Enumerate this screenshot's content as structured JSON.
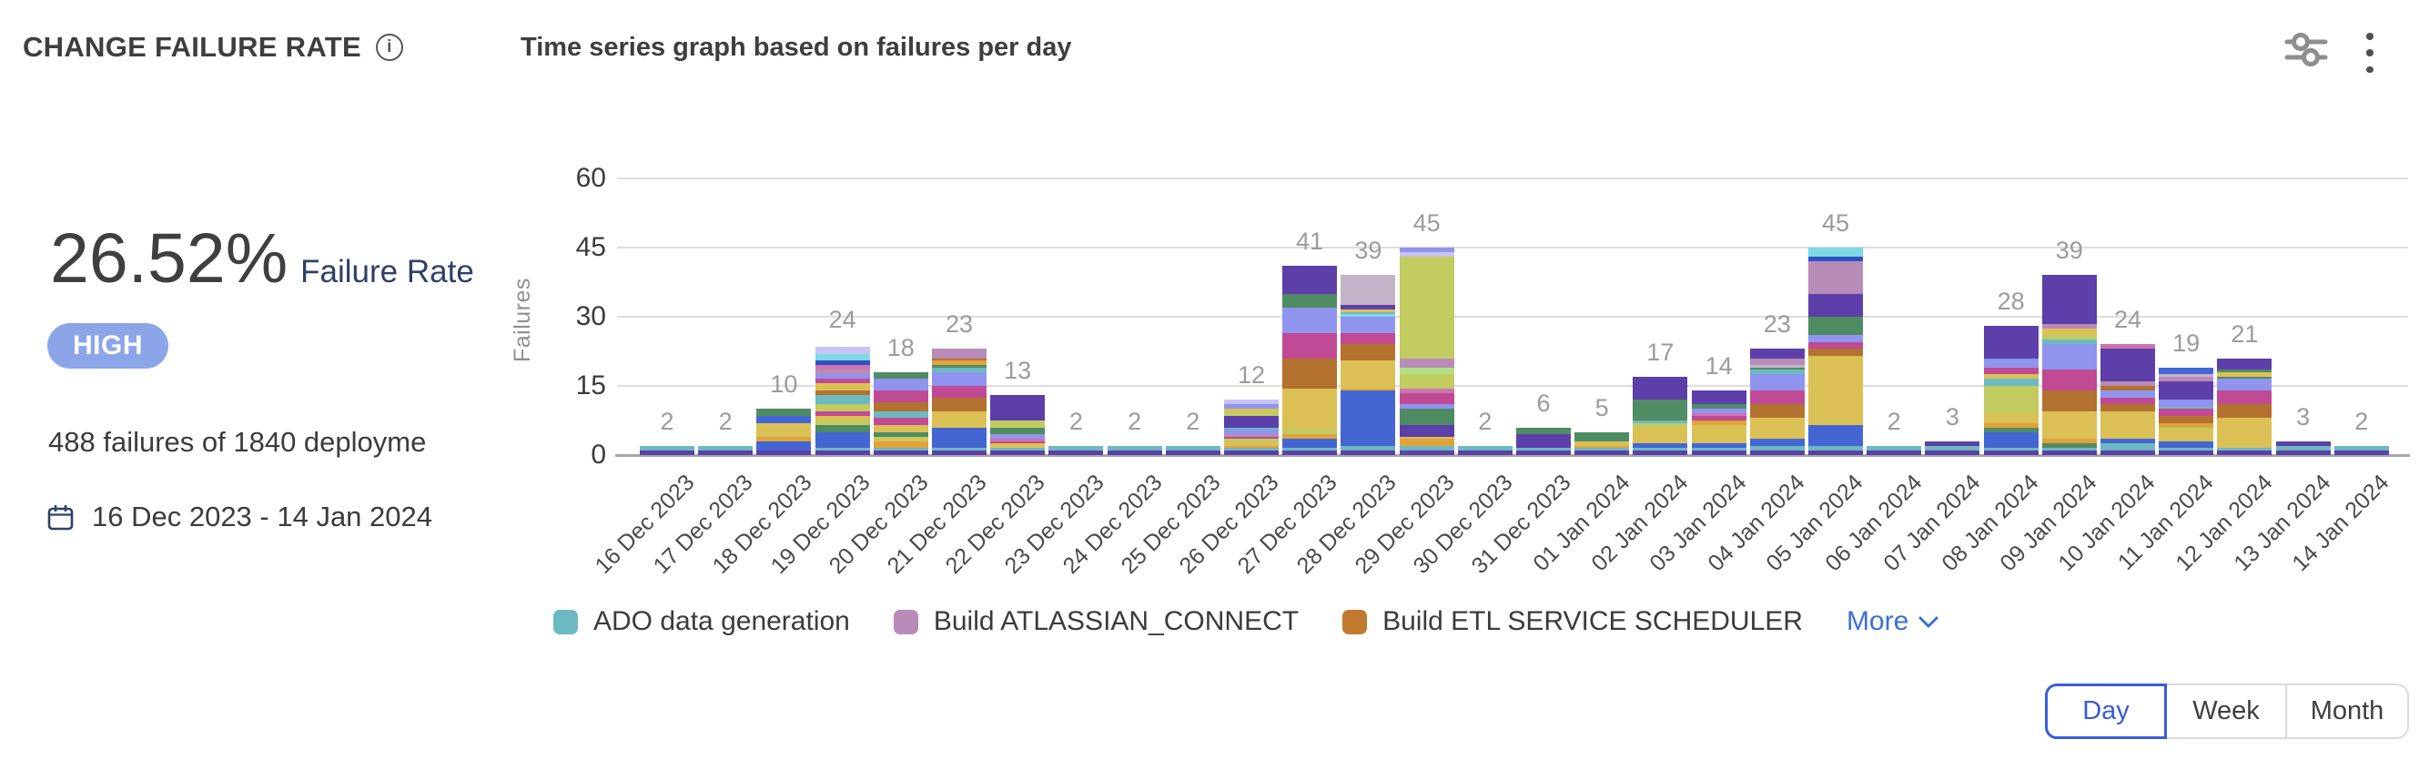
{
  "header": {
    "title": "CHANGE FAILURE RATE",
    "info_glyph": "i",
    "chart_title": "Time series graph based on failures per day"
  },
  "stats": {
    "rate_value": "26.52%",
    "rate_label": "Failure Rate",
    "severity": "HIGH",
    "severity_badge_bg": "#8CA5E9",
    "summary": "488 failures of 1840 deployme",
    "date_range": "16 Dec 2023 - 14 Jan 2024"
  },
  "legend": {
    "items": [
      {
        "label": "ADO data generation",
        "color": "#6CB9C1"
      },
      {
        "label": "Build ATLASSIAN_CONNECT",
        "color": "#B88BB9"
      },
      {
        "label": "Build ETL SERVICE SCHEDULER",
        "color": "#BF7A30"
      }
    ],
    "more_label": "More"
  },
  "controls": {
    "granularity": [
      {
        "label": "Day",
        "selected": true
      },
      {
        "label": "Week",
        "selected": false
      },
      {
        "label": "Month",
        "selected": false
      }
    ]
  },
  "colors": {
    "accent_blue": "#3C5BD7",
    "link_blue": "#3A6FD8",
    "grid": "#DDDDDD",
    "value_label": "#9B9B9B"
  },
  "chart_data": {
    "type": "bar",
    "stacked": true,
    "title": "Time series graph based on failures per day",
    "ylabel": "Failures",
    "yticks": [
      0,
      15,
      30,
      45,
      60
    ],
    "ylim": [
      0,
      60
    ],
    "legend_position": "bottom",
    "grid": true,
    "palette": {
      "P": "#5D3FA9",
      "T": "#6CB9C1",
      "C": "#7FD8E5",
      "B": "#4466D3",
      "DB": "#2E52C4",
      "A": "#E0A33C",
      "Y": "#DBC155",
      "O": "#C2CB60",
      "LG": "#B0DF85",
      "G": "#4F8B63",
      "M": "#C04A94",
      "Pk": "#CD74B0",
      "Br": "#B3722F",
      "Pw": "#9094EF",
      "Lv": "#C7C3F2",
      "Mv": "#B88BB9",
      "GM": "#C3B4C7"
    },
    "categories": [
      "16 Dec 2023",
      "17 Dec 2023",
      "18 Dec 2023",
      "19 Dec 2023",
      "20 Dec 2023",
      "21 Dec 2023",
      "22 Dec 2023",
      "23 Dec 2023",
      "24 Dec 2023",
      "25 Dec 2023",
      "26 Dec 2023",
      "27 Dec 2023",
      "28 Dec 2023",
      "29 Dec 2023",
      "30 Dec 2023",
      "31 Dec 2023",
      "01 Jan 2024",
      "02 Jan 2024",
      "03 Jan 2024",
      "04 Jan 2024",
      "05 Jan 2024",
      "06 Jan 2024",
      "07 Jan 2024",
      "08 Jan 2024",
      "09 Jan 2024",
      "10 Jan 2024",
      "11 Jan 2024",
      "12 Jan 2024",
      "13 Jan 2024",
      "14 Jan 2024"
    ],
    "totals": [
      2,
      2,
      10,
      24,
      18,
      23,
      13,
      2,
      2,
      2,
      12,
      41,
      39,
      45,
      2,
      6,
      5,
      17,
      14,
      23,
      45,
      2,
      3,
      28,
      39,
      24,
      19,
      21,
      3,
      2
    ],
    "bars": [
      {
        "date": "16 Dec 2023",
        "total": 2,
        "segments": [
          [
            "P",
            1
          ],
          [
            "T",
            1
          ]
        ]
      },
      {
        "date": "17 Dec 2023",
        "total": 2,
        "segments": [
          [
            "P",
            1
          ],
          [
            "T",
            1
          ]
        ]
      },
      {
        "date": "18 Dec 2023",
        "total": 10,
        "segments": [
          [
            "P",
            1
          ],
          [
            "B",
            2
          ],
          [
            "A",
            1
          ],
          [
            "Y",
            3
          ],
          [
            "B",
            1.5
          ],
          [
            "G",
            1.5
          ]
        ]
      },
      {
        "date": "19 Dec 2023",
        "total": 24,
        "segments": [
          [
            "P",
            1
          ],
          [
            "T",
            0.5
          ],
          [
            "B",
            3.5
          ],
          [
            "G",
            1.5
          ],
          [
            "O",
            1
          ],
          [
            "Y",
            1
          ],
          [
            "M",
            1
          ],
          [
            "O",
            1.5
          ],
          [
            "T",
            2
          ],
          [
            "Br",
            1
          ],
          [
            "Y",
            1.5
          ],
          [
            "M",
            1
          ],
          [
            "Pw",
            1
          ],
          [
            "Mv",
            1
          ],
          [
            "Pk",
            1
          ],
          [
            "DB",
            1
          ],
          [
            "C",
            1.5
          ],
          [
            "Lv",
            1.5
          ]
        ]
      },
      {
        "date": "20 Dec 2023",
        "total": 18,
        "segments": [
          [
            "P",
            1
          ],
          [
            "T",
            0.5
          ],
          [
            "A",
            1.5
          ],
          [
            "Y",
            0.5
          ],
          [
            "O",
            0.5
          ],
          [
            "G",
            1
          ],
          [
            "Y",
            1.5
          ],
          [
            "M",
            1.5
          ],
          [
            "T",
            1.5
          ],
          [
            "Br",
            2
          ],
          [
            "M",
            2.5
          ],
          [
            "Pw",
            2.5
          ],
          [
            "G",
            1.5
          ]
        ]
      },
      {
        "date": "21 Dec 2023",
        "total": 23,
        "segments": [
          [
            "P",
            1
          ],
          [
            "T",
            0.5
          ],
          [
            "B",
            4.5
          ],
          [
            "Y",
            3.5
          ],
          [
            "Br",
            3
          ],
          [
            "M",
            2.5
          ],
          [
            "Pw",
            3
          ],
          [
            "T",
            1
          ],
          [
            "G",
            0.5
          ],
          [
            "A",
            1
          ],
          [
            "Br",
            0.5
          ],
          [
            "Mv",
            2
          ]
        ]
      },
      {
        "date": "22 Dec 2023",
        "total": 13,
        "segments": [
          [
            "P",
            1
          ],
          [
            "T",
            0.5
          ],
          [
            "Y",
            1
          ],
          [
            "M",
            0.5
          ],
          [
            "Pk",
            0.5
          ],
          [
            "Pw",
            1
          ],
          [
            "G",
            1.5
          ],
          [
            "O",
            1.5
          ],
          [
            "P",
            5.5
          ]
        ]
      },
      {
        "date": "23 Dec 2023",
        "total": 2,
        "segments": [
          [
            "P",
            1
          ],
          [
            "T",
            1
          ]
        ]
      },
      {
        "date": "24 Dec 2023",
        "total": 2,
        "segments": [
          [
            "P",
            1
          ],
          [
            "T",
            1
          ]
        ]
      },
      {
        "date": "25 Dec 2023",
        "total": 2,
        "segments": [
          [
            "P",
            1
          ],
          [
            "T",
            1
          ]
        ]
      },
      {
        "date": "26 Dec 2023",
        "total": 12,
        "segments": [
          [
            "P",
            1
          ],
          [
            "T",
            0.5
          ],
          [
            "A",
            0.5
          ],
          [
            "Y",
            1
          ],
          [
            "O",
            0.5
          ],
          [
            "M",
            0.5
          ],
          [
            "Mv",
            0.5
          ],
          [
            "Pw",
            1
          ],
          [
            "T",
            0.5
          ],
          [
            "P",
            2.5
          ],
          [
            "O",
            1
          ],
          [
            "Y",
            0.5
          ],
          [
            "Pw",
            1
          ],
          [
            "Lv",
            1
          ]
        ]
      },
      {
        "date": "27 Dec 2023",
        "total": 41,
        "segments": [
          [
            "P",
            1
          ],
          [
            "T",
            0.5
          ],
          [
            "B",
            2
          ],
          [
            "A",
            1
          ],
          [
            "O",
            1
          ],
          [
            "Y",
            9
          ],
          [
            "Br",
            6.5
          ],
          [
            "M",
            5.5
          ],
          [
            "Pw",
            5.5
          ],
          [
            "G",
            3
          ],
          [
            "P",
            6
          ]
        ]
      },
      {
        "date": "28 Dec 2023",
        "total": 39,
        "segments": [
          [
            "P",
            1
          ],
          [
            "T",
            1
          ],
          [
            "B",
            12
          ],
          [
            "A",
            0.5
          ],
          [
            "Y",
            6
          ],
          [
            "Br",
            3.5
          ],
          [
            "M",
            2.5
          ],
          [
            "Pw",
            3.5
          ],
          [
            "C",
            0.5
          ],
          [
            "T",
            0.5
          ],
          [
            "Y",
            0.5
          ],
          [
            "P",
            1
          ],
          [
            "GM",
            6.5
          ]
        ]
      },
      {
        "date": "29 Dec 2023",
        "total": 45,
        "segments": [
          [
            "P",
            1
          ],
          [
            "T",
            1
          ],
          [
            "A",
            1.5
          ],
          [
            "Y",
            0.5
          ],
          [
            "P",
            2.5
          ],
          [
            "G",
            3.5
          ],
          [
            "Pw",
            1
          ],
          [
            "M",
            2.5
          ],
          [
            "Pk",
            1
          ],
          [
            "O",
            3
          ],
          [
            "LG",
            1.5
          ],
          [
            "Mv",
            2
          ],
          [
            "O",
            22
          ],
          [
            "Lv",
            1
          ],
          [
            "Pw",
            1
          ]
        ]
      },
      {
        "date": "30 Dec 2023",
        "total": 2,
        "segments": [
          [
            "P",
            1
          ],
          [
            "T",
            1
          ]
        ]
      },
      {
        "date": "31 Dec 2023",
        "total": 6,
        "segments": [
          [
            "P",
            1
          ],
          [
            "T",
            0.5
          ],
          [
            "P",
            3
          ],
          [
            "G",
            1.5
          ]
        ]
      },
      {
        "date": "01 Jan 2024",
        "total": 5,
        "segments": [
          [
            "P",
            1
          ],
          [
            "T",
            0.5
          ],
          [
            "A",
            0.5
          ],
          [
            "Y",
            1
          ],
          [
            "G",
            2
          ]
        ]
      },
      {
        "date": "02 Jan 2024",
        "total": 17,
        "segments": [
          [
            "P",
            1
          ],
          [
            "T",
            0.5
          ],
          [
            "B",
            1
          ],
          [
            "Y",
            3.5
          ],
          [
            "O",
            1
          ],
          [
            "T",
            0.5
          ],
          [
            "G",
            4.5
          ],
          [
            "P",
            5
          ]
        ]
      },
      {
        "date": "03 Jan 2024",
        "total": 14,
        "segments": [
          [
            "P",
            1
          ],
          [
            "T",
            0.5
          ],
          [
            "B",
            1
          ],
          [
            "Y",
            4
          ],
          [
            "A",
            1
          ],
          [
            "M",
            1
          ],
          [
            "Pk",
            0.5
          ],
          [
            "Pw",
            1
          ],
          [
            "G",
            1
          ],
          [
            "P",
            3
          ]
        ]
      },
      {
        "date": "04 Jan 2024",
        "total": 23,
        "segments": [
          [
            "P",
            1
          ],
          [
            "T",
            1
          ],
          [
            "B",
            1.5
          ],
          [
            "Y",
            4.5
          ],
          [
            "Br",
            3
          ],
          [
            "M",
            3
          ],
          [
            "Pw",
            3.5
          ],
          [
            "T",
            1
          ],
          [
            "G",
            0.5
          ],
          [
            "GM",
            0.5
          ],
          [
            "Mv",
            1.5
          ],
          [
            "P",
            2
          ]
        ]
      },
      {
        "date": "05 Jan 2024",
        "total": 45,
        "segments": [
          [
            "P",
            1
          ],
          [
            "T",
            1
          ],
          [
            "B",
            4.5
          ],
          [
            "Y",
            15
          ],
          [
            "Br",
            1.5
          ],
          [
            "M",
            1.5
          ],
          [
            "Pw",
            1.5
          ],
          [
            "G",
            4
          ],
          [
            "P",
            5
          ],
          [
            "Mv",
            7
          ],
          [
            "DB",
            1
          ],
          [
            "C",
            2
          ]
        ]
      },
      {
        "date": "06 Jan 2024",
        "total": 2,
        "segments": [
          [
            "P",
            1
          ],
          [
            "T",
            1
          ]
        ]
      },
      {
        "date": "07 Jan 2024",
        "total": 3,
        "segments": [
          [
            "P",
            1
          ],
          [
            "T",
            1
          ],
          [
            "P",
            1
          ]
        ]
      },
      {
        "date": "08 Jan 2024",
        "total": 28,
        "segments": [
          [
            "P",
            1
          ],
          [
            "T",
            0.5
          ],
          [
            "B",
            3.5
          ],
          [
            "G",
            1
          ],
          [
            "A",
            1
          ],
          [
            "Y",
            2
          ],
          [
            "O",
            6
          ],
          [
            "T",
            1.5
          ],
          [
            "Y",
            1
          ],
          [
            "M",
            1.5
          ],
          [
            "Pw",
            2
          ],
          [
            "P",
            7
          ]
        ]
      },
      {
        "date": "09 Jan 2024",
        "total": 39,
        "segments": [
          [
            "P",
            1
          ],
          [
            "T",
            0.5
          ],
          [
            "G",
            1
          ],
          [
            "A",
            1
          ],
          [
            "Y",
            6
          ],
          [
            "Br",
            4.5
          ],
          [
            "M",
            4.5
          ],
          [
            "Pw",
            5.5
          ],
          [
            "T",
            1
          ],
          [
            "O",
            1
          ],
          [
            "Y",
            1.5
          ],
          [
            "Mv",
            1
          ],
          [
            "P",
            10.5
          ]
        ]
      },
      {
        "date": "10 Jan 2024",
        "total": 24,
        "segments": [
          [
            "P",
            1
          ],
          [
            "T",
            1.5
          ],
          [
            "B",
            1
          ],
          [
            "Y",
            6
          ],
          [
            "Br",
            1.5
          ],
          [
            "M",
            1.5
          ],
          [
            "Pw",
            1.5
          ],
          [
            "Br",
            1
          ],
          [
            "Mv",
            1
          ],
          [
            "P",
            7
          ],
          [
            "Pk",
            1
          ]
        ]
      },
      {
        "date": "11 Jan 2024",
        "total": 19,
        "segments": [
          [
            "P",
            1
          ],
          [
            "T",
            0.5
          ],
          [
            "B",
            1.5
          ],
          [
            "Y",
            2.5
          ],
          [
            "O",
            0.5
          ],
          [
            "A",
            1
          ],
          [
            "Br",
            1.5
          ],
          [
            "M",
            1.5
          ],
          [
            "T",
            0.5
          ],
          [
            "Pw",
            1.5
          ],
          [
            "P",
            4
          ],
          [
            "Mv",
            1
          ],
          [
            "GM",
            0.5
          ],
          [
            "B",
            1.5
          ]
        ]
      },
      {
        "date": "12 Jan 2024",
        "total": 21,
        "segments": [
          [
            "P",
            1
          ],
          [
            "T",
            0.5
          ],
          [
            "Y",
            6.5
          ],
          [
            "Br",
            3
          ],
          [
            "M",
            3
          ],
          [
            "Pw",
            2.5
          ],
          [
            "G",
            0.5
          ],
          [
            "Y",
            1
          ],
          [
            "G",
            0.5
          ],
          [
            "P",
            2.5
          ]
        ]
      },
      {
        "date": "13 Jan 2024",
        "total": 3,
        "segments": [
          [
            "P",
            1
          ],
          [
            "T",
            1
          ],
          [
            "P",
            1
          ]
        ]
      },
      {
        "date": "14 Jan 2024",
        "total": 2,
        "segments": [
          [
            "P",
            1
          ],
          [
            "T",
            1
          ]
        ]
      }
    ]
  }
}
